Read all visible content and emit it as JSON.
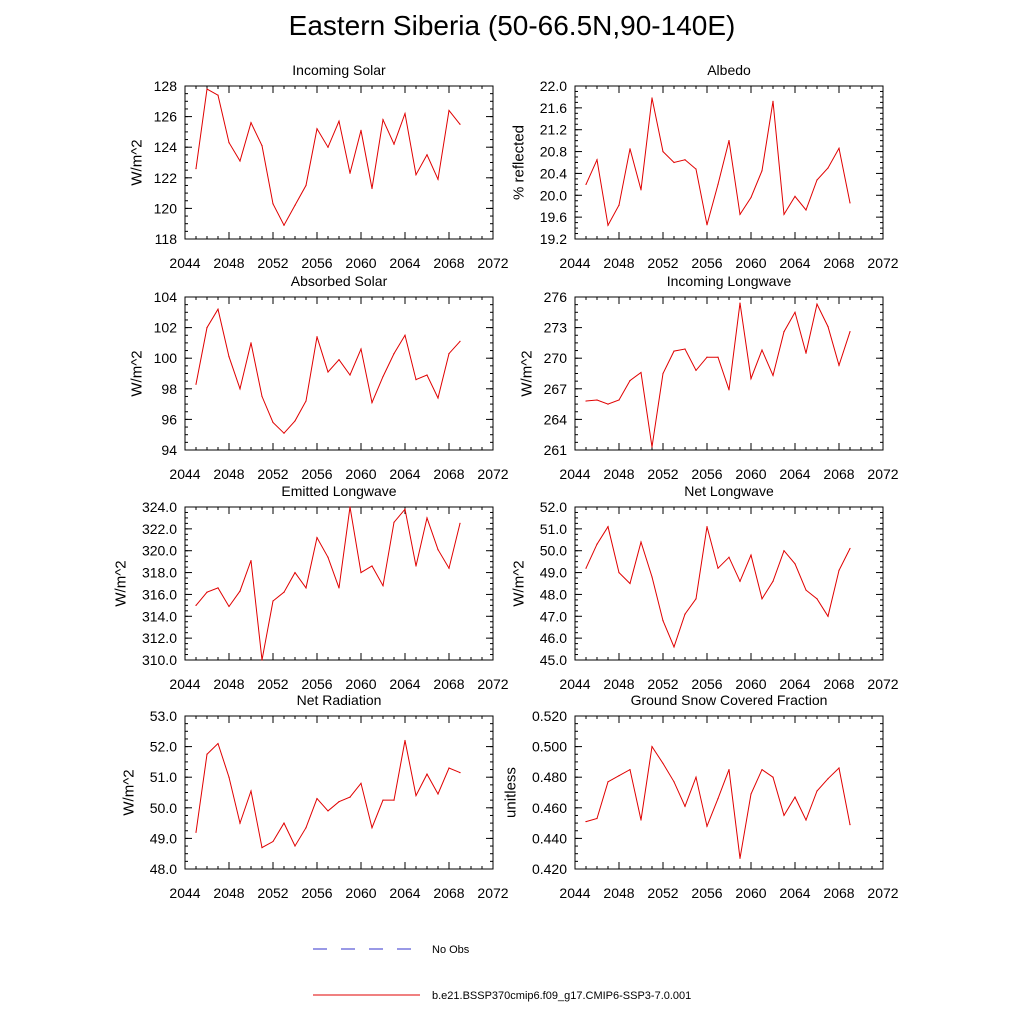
{
  "title": "Eastern Siberia (50-66.5N,90-140E)",
  "legend": {
    "obs_label": "No Obs",
    "model_label": "b.e21.BSSP370cmip6.f09_g17.CMIP6-SSP3-7.0.001",
    "obs_color": "#3333cc",
    "model_color": "#e00000"
  },
  "chart_data": [
    {
      "type": "line",
      "title": "Incoming Solar",
      "ylabel": "W/m^2",
      "xlim": [
        2044,
        2072
      ],
      "ylim": [
        118,
        128
      ],
      "xticks": [
        "2044",
        "2048",
        "2052",
        "2056",
        "2060",
        "2064",
        "2068",
        "2072"
      ],
      "yticks": [
        "118",
        "120",
        "122",
        "124",
        "126",
        "128"
      ],
      "series": [
        {
          "x": [
            2045,
            2046,
            2047,
            2048,
            2049,
            2050,
            2051,
            2052,
            2053,
            2054,
            2055,
            2056,
            2057,
            2058,
            2059,
            2060,
            2061,
            2062,
            2063,
            2064,
            2065,
            2066,
            2067,
            2068,
            2069
          ],
          "values": [
            122.6,
            127.8,
            127.4,
            124.3,
            123.1,
            125.6,
            124.1,
            120.3,
            118.9,
            120.2,
            121.5,
            125.2,
            124.0,
            125.7,
            122.3,
            125.1,
            121.3,
            125.8,
            124.2,
            126.2,
            122.2,
            123.5,
            121.9,
            126.4,
            125.5
          ]
        }
      ]
    },
    {
      "type": "line",
      "title": "Albedo",
      "ylabel": "% reflected",
      "xlim": [
        2044,
        2072
      ],
      "ylim": [
        19.2,
        22.0
      ],
      "xticks": [
        "2044",
        "2048",
        "2052",
        "2056",
        "2060",
        "2064",
        "2068",
        "2072"
      ],
      "yticks": [
        "19.2",
        "19.6",
        "20.0",
        "20.4",
        "20.8",
        "21.2",
        "21.6",
        "22.0"
      ],
      "series": [
        {
          "x": [
            2045,
            2046,
            2047,
            2048,
            2049,
            2050,
            2051,
            2052,
            2053,
            2054,
            2055,
            2056,
            2057,
            2058,
            2059,
            2060,
            2061,
            2062,
            2063,
            2064,
            2065,
            2066,
            2067,
            2068,
            2069
          ],
          "values": [
            20.2,
            20.65,
            19.45,
            19.82,
            20.85,
            20.1,
            21.78,
            20.8,
            20.6,
            20.65,
            20.48,
            19.46,
            20.2,
            21.0,
            19.65,
            19.96,
            20.45,
            21.72,
            19.65,
            19.98,
            19.73,
            20.28,
            20.5,
            20.86,
            19.86
          ]
        }
      ]
    },
    {
      "type": "line",
      "title": "Absorbed Solar",
      "ylabel": "W/m^2",
      "xlim": [
        2044,
        2072
      ],
      "ylim": [
        94,
        104
      ],
      "xticks": [
        "2044",
        "2048",
        "2052",
        "2056",
        "2060",
        "2064",
        "2068",
        "2072"
      ],
      "yticks": [
        "94",
        "96",
        "98",
        "100",
        "102",
        "104"
      ],
      "series": [
        {
          "x": [
            2045,
            2046,
            2047,
            2048,
            2049,
            2050,
            2051,
            2052,
            2053,
            2054,
            2055,
            2056,
            2057,
            2058,
            2059,
            2060,
            2061,
            2062,
            2063,
            2064,
            2065,
            2066,
            2067,
            2068,
            2069
          ],
          "values": [
            98.3,
            102.0,
            103.2,
            100.1,
            98.0,
            101.0,
            97.5,
            95.8,
            95.1,
            95.9,
            97.2,
            101.4,
            99.1,
            99.9,
            98.9,
            100.6,
            97.1,
            98.8,
            100.3,
            101.5,
            98.6,
            98.9,
            97.4,
            100.3,
            101.1
          ]
        }
      ]
    },
    {
      "type": "line",
      "title": "Incoming Longwave",
      "ylabel": "W/m^2",
      "xlim": [
        2044,
        2072
      ],
      "ylim": [
        261,
        276
      ],
      "xticks": [
        "2044",
        "2048",
        "2052",
        "2056",
        "2060",
        "2064",
        "2068",
        "2072"
      ],
      "yticks": [
        "261",
        "264",
        "267",
        "270",
        "273",
        "276"
      ],
      "series": [
        {
          "x": [
            2045,
            2046,
            2047,
            2048,
            2049,
            2050,
            2051,
            2052,
            2053,
            2054,
            2055,
            2056,
            2057,
            2058,
            2059,
            2060,
            2061,
            2062,
            2063,
            2064,
            2065,
            2066,
            2067,
            2068,
            2069
          ],
          "values": [
            265.8,
            265.9,
            265.5,
            265.9,
            267.8,
            268.6,
            261.3,
            268.5,
            270.7,
            270.9,
            268.8,
            270.1,
            270.1,
            266.9,
            275.4,
            268.0,
            270.8,
            268.3,
            272.6,
            274.5,
            270.5,
            275.3,
            273.1,
            269.3,
            272.6
          ]
        }
      ]
    },
    {
      "type": "line",
      "title": "Emitted Longwave",
      "ylabel": "W/m^2",
      "xlim": [
        2044,
        2072
      ],
      "ylim": [
        310,
        324
      ],
      "xticks": [
        "2044",
        "2048",
        "2052",
        "2056",
        "2060",
        "2064",
        "2068",
        "2072"
      ],
      "yticks": [
        "310.0",
        "312.0",
        "314.0",
        "316.0",
        "318.0",
        "320.0",
        "322.0",
        "324.0"
      ],
      "series": [
        {
          "x": [
            2045,
            2046,
            2047,
            2048,
            2049,
            2050,
            2051,
            2052,
            2053,
            2054,
            2055,
            2056,
            2057,
            2058,
            2059,
            2060,
            2061,
            2062,
            2063,
            2064,
            2065,
            2066,
            2067,
            2068,
            2069
          ],
          "values": [
            315.0,
            316.2,
            316.6,
            314.9,
            316.3,
            319.1,
            310.0,
            315.4,
            316.2,
            318.0,
            316.6,
            321.2,
            319.4,
            316.6,
            324.0,
            318.0,
            318.6,
            316.8,
            322.6,
            323.8,
            318.6,
            323.0,
            320.1,
            318.4,
            322.5
          ]
        }
      ]
    },
    {
      "type": "line",
      "title": "Net Longwave",
      "ylabel": "W/m^2",
      "xlim": [
        2044,
        2072
      ],
      "ylim": [
        45,
        52
      ],
      "xticks": [
        "2044",
        "2048",
        "2052",
        "2056",
        "2060",
        "2064",
        "2068",
        "2072"
      ],
      "yticks": [
        "45.0",
        "46.0",
        "47.0",
        "48.0",
        "49.0",
        "50.0",
        "51.0",
        "52.0"
      ],
      "series": [
        {
          "x": [
            2045,
            2046,
            2047,
            2048,
            2049,
            2050,
            2051,
            2052,
            2053,
            2054,
            2055,
            2056,
            2057,
            2058,
            2059,
            2060,
            2061,
            2062,
            2063,
            2064,
            2065,
            2066,
            2067,
            2068,
            2069
          ],
          "values": [
            49.2,
            50.3,
            51.1,
            49.0,
            48.5,
            50.4,
            48.8,
            46.8,
            45.6,
            47.1,
            47.8,
            51.1,
            49.2,
            49.7,
            48.6,
            49.8,
            47.8,
            48.6,
            50.0,
            49.4,
            48.2,
            47.8,
            47.0,
            49.1,
            50.1
          ]
        }
      ]
    },
    {
      "type": "line",
      "title": "Net Radiation",
      "ylabel": "W/m^2",
      "xlim": [
        2044,
        2072
      ],
      "ylim": [
        48,
        53
      ],
      "xticks": [
        "2044",
        "2048",
        "2052",
        "2056",
        "2060",
        "2064",
        "2068",
        "2072"
      ],
      "yticks": [
        "48.0",
        "49.0",
        "50.0",
        "51.0",
        "52.0",
        "53.0"
      ],
      "series": [
        {
          "x": [
            2045,
            2046,
            2047,
            2048,
            2049,
            2050,
            2051,
            2052,
            2053,
            2054,
            2055,
            2056,
            2057,
            2058,
            2059,
            2060,
            2061,
            2062,
            2063,
            2064,
            2065,
            2066,
            2067,
            2068,
            2069
          ],
          "values": [
            49.2,
            51.75,
            52.1,
            51.0,
            49.5,
            50.55,
            48.7,
            48.9,
            49.5,
            48.75,
            49.35,
            50.3,
            49.9,
            50.2,
            50.35,
            50.8,
            49.35,
            50.25,
            50.25,
            52.2,
            50.4,
            51.1,
            50.45,
            51.3,
            51.15
          ]
        }
      ]
    },
    {
      "type": "line",
      "title": "Ground Snow Covered Fraction",
      "ylabel": "unitless",
      "xlim": [
        2044,
        2072
      ],
      "ylim": [
        0.42,
        0.52
      ],
      "xticks": [
        "2044",
        "2048",
        "2052",
        "2056",
        "2060",
        "2064",
        "2068",
        "2072"
      ],
      "yticks": [
        "0.420",
        "0.440",
        "0.460",
        "0.480",
        "0.500",
        "0.520"
      ],
      "series": [
        {
          "x": [
            2045,
            2046,
            2047,
            2048,
            2049,
            2050,
            2051,
            2052,
            2053,
            2054,
            2055,
            2056,
            2057,
            2058,
            2059,
            2060,
            2061,
            2062,
            2063,
            2064,
            2065,
            2066,
            2067,
            2068,
            2069
          ],
          "values": [
            0.451,
            0.453,
            0.477,
            0.481,
            0.485,
            0.452,
            0.5,
            0.489,
            0.477,
            0.461,
            0.48,
            0.448,
            0.466,
            0.485,
            0.427,
            0.469,
            0.485,
            0.48,
            0.455,
            0.467,
            0.452,
            0.471,
            0.479,
            0.486,
            0.449
          ]
        }
      ]
    }
  ]
}
